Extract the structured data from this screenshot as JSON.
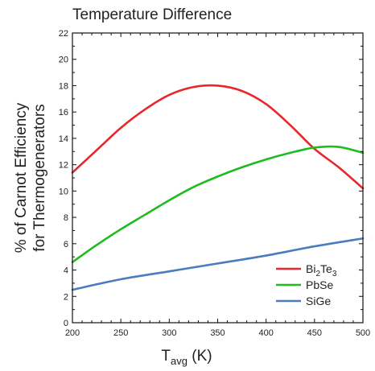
{
  "chart_data": {
    "type": "line",
    "title": "Temperature Difference",
    "xlabel": {
      "main": "T",
      "sub": "avg",
      "unit": " (K)"
    },
    "ylabel": [
      "% of Carnot Efficiency",
      "for Thermogenerators"
    ],
    "xlim": [
      200,
      500
    ],
    "ylim": [
      0,
      22
    ],
    "xticks": [
      200,
      250,
      300,
      350,
      400,
      450,
      500
    ],
    "yticks": [
      0,
      2,
      4,
      6,
      8,
      10,
      12,
      14,
      16,
      18,
      20,
      22
    ],
    "legend_position": "bottom-right",
    "grid": false,
    "series": [
      {
        "name": "Bi2Te3",
        "label_parts": [
          [
            "Bi",
            ""
          ],
          [
            "2",
            "sub"
          ],
          [
            "Te",
            ""
          ],
          [
            "3",
            "sub"
          ]
        ],
        "color": "#e8262b",
        "x": [
          200,
          225,
          250,
          275,
          300,
          325,
          350,
          375,
          400,
          425,
          450,
          475,
          500
        ],
        "y": [
          11.4,
          13.1,
          14.8,
          16.2,
          17.3,
          17.9,
          18.0,
          17.6,
          16.6,
          15.0,
          13.2,
          11.8,
          10.2
        ]
      },
      {
        "name": "PbSe",
        "label_parts": [
          [
            "PbSe",
            ""
          ]
        ],
        "color": "#1fbb1f",
        "x": [
          200,
          225,
          250,
          275,
          300,
          325,
          350,
          375,
          400,
          425,
          450,
          475,
          500
        ],
        "y": [
          4.6,
          5.9,
          7.1,
          8.2,
          9.3,
          10.3,
          11.1,
          11.8,
          12.4,
          12.9,
          13.3,
          13.35,
          12.9
        ]
      },
      {
        "name": "SiGe",
        "label_parts": [
          [
            "SiGe",
            ""
          ]
        ],
        "color": "#4a7cc0",
        "x": [
          200,
          250,
          300,
          350,
          400,
          450,
          500
        ],
        "y": [
          2.5,
          3.3,
          3.9,
          4.5,
          5.1,
          5.8,
          6.4
        ]
      }
    ]
  }
}
